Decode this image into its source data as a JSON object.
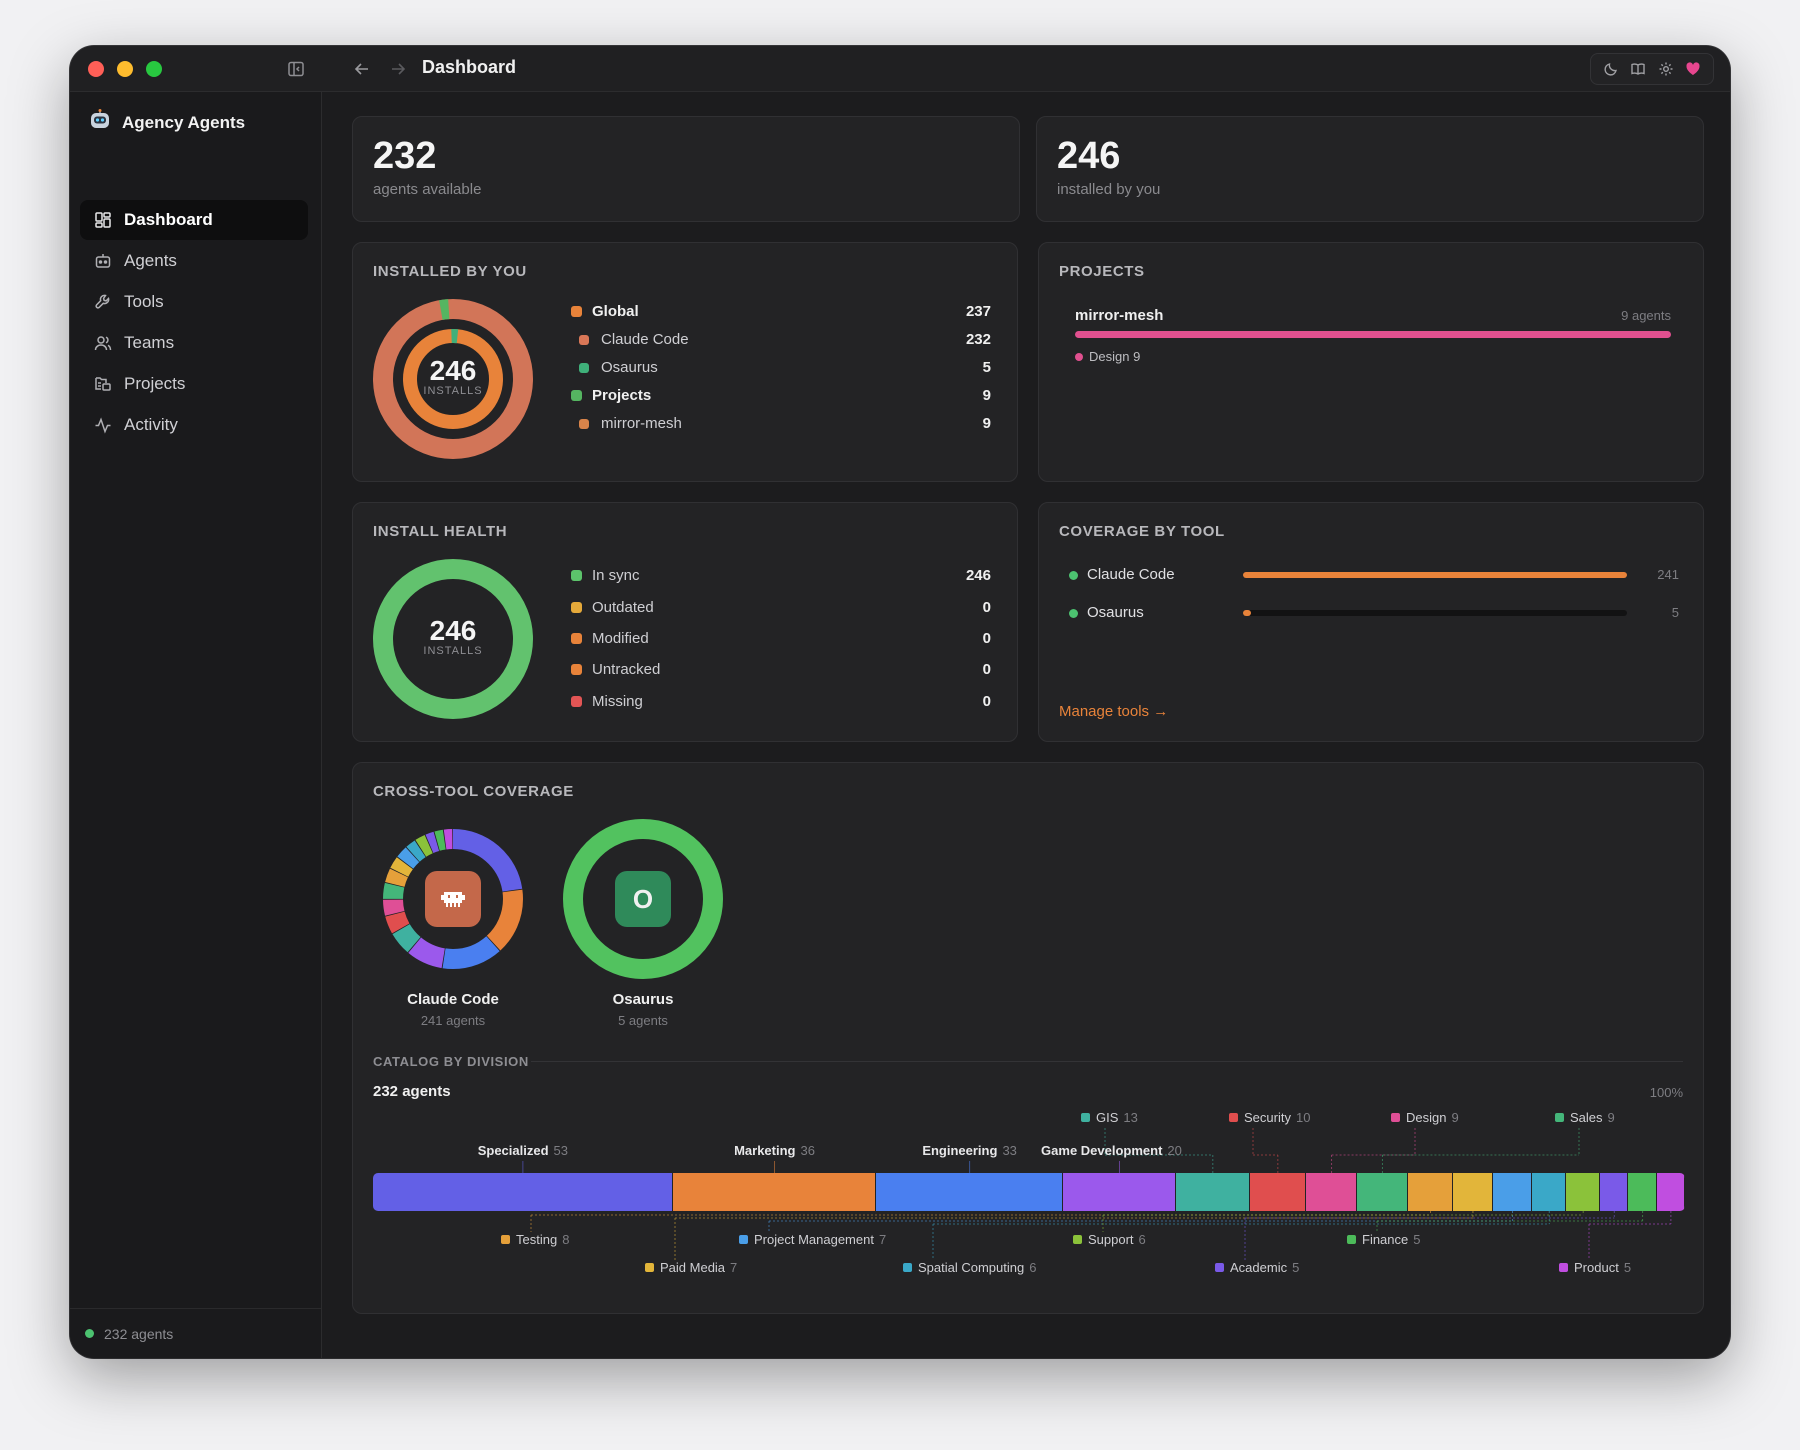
{
  "window": {
    "title": "Dashboard"
  },
  "sidebar": {
    "app_name": "Agency Agents",
    "items": [
      {
        "label": "Dashboard",
        "icon": "grid-icon"
      },
      {
        "label": "Agents",
        "icon": "robot-icon"
      },
      {
        "label": "Tools",
        "icon": "wrench-icon"
      },
      {
        "label": "Teams",
        "icon": "users-icon"
      },
      {
        "label": "Projects",
        "icon": "folder-tree-icon"
      },
      {
        "label": "Activity",
        "icon": "activity-icon"
      }
    ],
    "footer": "232 agents"
  },
  "stats": {
    "available": {
      "value": "232",
      "label": "agents available"
    },
    "installed": {
      "value": "246",
      "label": "installed by you"
    }
  },
  "installed_by_you": {
    "title": "INSTALLED BY YOU",
    "center_value": "246",
    "center_label": "INSTALLS",
    "rows": [
      {
        "label": "Global",
        "value": "237",
        "color": "#e8833a",
        "bold": true
      },
      {
        "label": "Claude Code",
        "value": "232",
        "color": "#d97757",
        "bold": false
      },
      {
        "label": "Osaurus",
        "value": "5",
        "color": "#3fb07a",
        "bold": false
      },
      {
        "label": "Projects",
        "value": "9",
        "color": "#55b561",
        "bold": true
      },
      {
        "label": "mirror-mesh",
        "value": "9",
        "color": "#d9844a",
        "bold": false
      }
    ]
  },
  "projects": {
    "title": "PROJECTS",
    "items": [
      {
        "name": "mirror-mesh",
        "count": "9 agents",
        "fill": 1.0,
        "tag": "Design 9",
        "color": "#e0508f"
      }
    ]
  },
  "install_health": {
    "title": "INSTALL HEALTH",
    "center_value": "246",
    "center_label": "INSTALLS",
    "rows": [
      {
        "label": "In sync",
        "value": "246",
        "color": "#5cc36b"
      },
      {
        "label": "Outdated",
        "value": "0",
        "color": "#e5a93a"
      },
      {
        "label": "Modified",
        "value": "0",
        "color": "#e8833a"
      },
      {
        "label": "Untracked",
        "value": "0",
        "color": "#e8833a"
      },
      {
        "label": "Missing",
        "value": "0",
        "color": "#e25555"
      }
    ]
  },
  "coverage_by_tool": {
    "title": "COVERAGE BY TOOL",
    "tools": [
      {
        "name": "Claude Code",
        "value": "241",
        "fill": 1.0
      },
      {
        "name": "Osaurus",
        "value": "5",
        "fill": 0.02
      }
    ],
    "bar_color": "#e8833a",
    "dot_color": "#4cc270",
    "link": "Manage tools →"
  },
  "cross_tool": {
    "title": "CROSS-TOOL COVERAGE",
    "tools": [
      {
        "name": "Claude Code",
        "sub": "241 agents",
        "badge": "❖",
        "badge_color": "#c4684a"
      },
      {
        "name": "Osaurus",
        "sub": "5 agents",
        "badge": "O",
        "badge_color": "#2f8a5a"
      }
    ]
  },
  "catalog": {
    "title": "CATALOG BY DIVISION",
    "total": "232 agents",
    "percent": "100%",
    "divisions": [
      {
        "name": "Specialized",
        "count": "53",
        "value": 53,
        "color": "#6360e6",
        "major": true
      },
      {
        "name": "Marketing",
        "count": "36",
        "value": 36,
        "color": "#e8833a",
        "major": true
      },
      {
        "name": "Engineering",
        "count": "33",
        "value": 33,
        "color": "#4a7ff0",
        "major": true
      },
      {
        "name": "Game Development",
        "count": "20",
        "value": 20,
        "color": "#9b59ec",
        "major": true
      },
      {
        "name": "GIS",
        "count": "13",
        "value": 13,
        "color": "#3fb1a0",
        "major": false
      },
      {
        "name": "Security",
        "count": "10",
        "value": 10,
        "color": "#e04e4e",
        "major": false
      },
      {
        "name": "Design",
        "count": "9",
        "value": 9,
        "color": "#df4f96",
        "major": false
      },
      {
        "name": "Sales",
        "count": "9",
        "value": 9,
        "color": "#44b67a",
        "major": false
      },
      {
        "name": "Testing",
        "count": "8",
        "value": 8,
        "color": "#e5a03a",
        "major": false
      },
      {
        "name": "Paid Media",
        "count": "7",
        "value": 7,
        "color": "#e2b53a",
        "major": false
      },
      {
        "name": "Project Management",
        "count": "7",
        "value": 7,
        "color": "#4a9ee8",
        "major": false
      },
      {
        "name": "Spatial Computing",
        "count": "6",
        "value": 6,
        "color": "#3aa8c8",
        "major": false
      },
      {
        "name": "Support",
        "count": "6",
        "value": 6,
        "color": "#8bc23a",
        "major": false
      },
      {
        "name": "Academic",
        "count": "5",
        "value": 5,
        "color": "#7a5ae8",
        "major": false
      },
      {
        "name": "Finance",
        "count": "5",
        "value": 5,
        "color": "#4cbb5a",
        "major": false
      },
      {
        "name": "Product",
        "count": "5",
        "value": 5,
        "color": "#c04ee0",
        "major": false
      }
    ]
  }
}
